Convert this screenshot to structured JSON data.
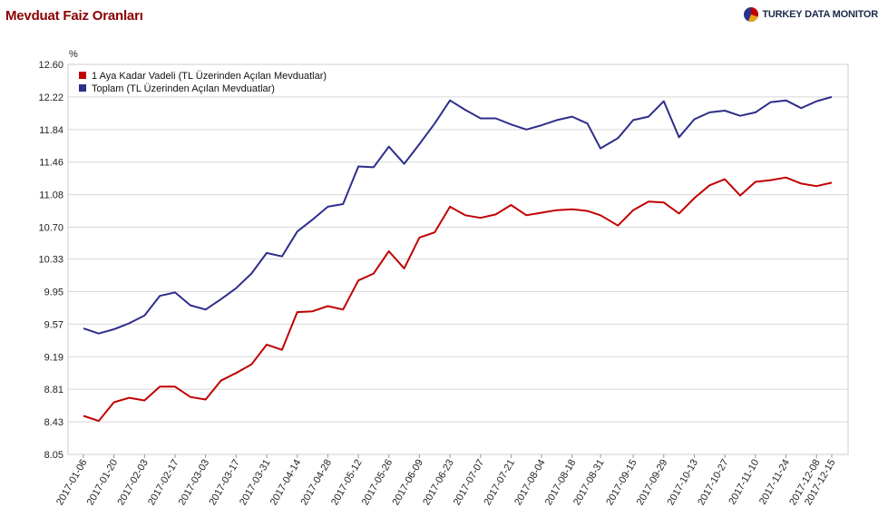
{
  "header": {
    "title": "Mevduat Faiz Oranları",
    "brand": "TURKEY DATA MONITOR"
  },
  "colors": {
    "series1": "#c00000",
    "series2": "#2e2e8b",
    "grid": "#d8d8d8",
    "frame": "#cccccc",
    "title": "#8b0000"
  },
  "chart_data": {
    "type": "line",
    "title": "Mevduat Faiz Oranları",
    "ylabel": "%",
    "xlabel": "",
    "ylim": [
      8.05,
      12.6
    ],
    "yticks": [
      "12.60",
      "12.22",
      "11.84",
      "11.46",
      "11.08",
      "10.70",
      "10.33",
      "9.95",
      "9.57",
      "9.19",
      "8.81",
      "8.43",
      "8.05"
    ],
    "grid": true,
    "legend": "top-left",
    "xtick_labels": [
      "2017-01-06",
      "2017-01-20",
      "2017-02-03",
      "2017-02-17",
      "2017-03-03",
      "2017-03-17",
      "2017-03-31",
      "2017-04-14",
      "2017-04-28",
      "2017-05-12",
      "2017-05-26",
      "2017-06-09",
      "2017-06-23",
      "2017-07-07",
      "2017-07-21",
      "2017-08-04",
      "2017-08-18",
      "2017-08-31",
      "2017-09-15",
      "2017-09-29",
      "2017-10-13",
      "2017-10-27",
      "2017-11-10",
      "2017-11-24",
      "2017-12-08",
      "2017-12-15"
    ],
    "x": [
      "2017-01-06",
      "2017-01-13",
      "2017-01-20",
      "2017-01-27",
      "2017-02-03",
      "2017-02-10",
      "2017-02-17",
      "2017-02-24",
      "2017-03-03",
      "2017-03-10",
      "2017-03-17",
      "2017-03-24",
      "2017-03-31",
      "2017-04-07",
      "2017-04-14",
      "2017-04-21",
      "2017-04-28",
      "2017-05-05",
      "2017-05-12",
      "2017-05-19",
      "2017-05-26",
      "2017-06-02",
      "2017-06-09",
      "2017-06-16",
      "2017-06-23",
      "2017-06-30",
      "2017-07-07",
      "2017-07-14",
      "2017-07-21",
      "2017-07-28",
      "2017-08-04",
      "2017-08-11",
      "2017-08-18",
      "2017-08-25",
      "2017-08-31",
      "2017-09-08",
      "2017-09-15",
      "2017-09-22",
      "2017-09-29",
      "2017-10-06",
      "2017-10-13",
      "2017-10-20",
      "2017-10-27",
      "2017-11-03",
      "2017-11-10",
      "2017-11-17",
      "2017-11-24",
      "2017-12-01",
      "2017-12-08",
      "2017-12-15"
    ],
    "series": [
      {
        "name": "1 Aya Kadar Vadeli (TL Üzerinden Açılan Mevduatlar)",
        "color": "#c00000",
        "values": [
          8.5,
          8.44,
          8.66,
          8.71,
          8.68,
          8.84,
          8.84,
          8.72,
          8.69,
          8.91,
          9.0,
          9.1,
          9.33,
          9.27,
          9.71,
          9.72,
          9.78,
          9.74,
          10.08,
          10.16,
          10.42,
          10.22,
          10.58,
          10.64,
          10.94,
          10.84,
          10.81,
          10.85,
          10.96,
          10.84,
          10.87,
          10.9,
          10.91,
          10.89,
          10.84,
          10.72,
          10.9,
          11.0,
          10.99,
          10.86,
          11.04,
          11.19,
          11.26,
          11.07,
          11.23,
          11.25,
          11.28,
          11.21,
          11.18,
          11.22
        ]
      },
      {
        "name": "Toplam (TL Üzerinden Açılan Mevduatlar)",
        "color": "#2e2e8b",
        "values": [
          9.52,
          9.46,
          9.51,
          9.58,
          9.67,
          9.9,
          9.94,
          9.79,
          9.74,
          9.86,
          9.99,
          10.16,
          10.4,
          10.36,
          10.65,
          10.79,
          10.94,
          10.97,
          11.41,
          11.4,
          11.64,
          11.44,
          11.67,
          11.91,
          12.18,
          12.07,
          11.97,
          11.97,
          11.9,
          11.84,
          11.89,
          11.95,
          11.99,
          11.91,
          11.62,
          11.74,
          11.95,
          11.99,
          12.17,
          11.75,
          11.96,
          12.04,
          12.06,
          12.0,
          12.04,
          12.16,
          12.18,
          12.09,
          12.17,
          12.22
        ]
      }
    ]
  }
}
